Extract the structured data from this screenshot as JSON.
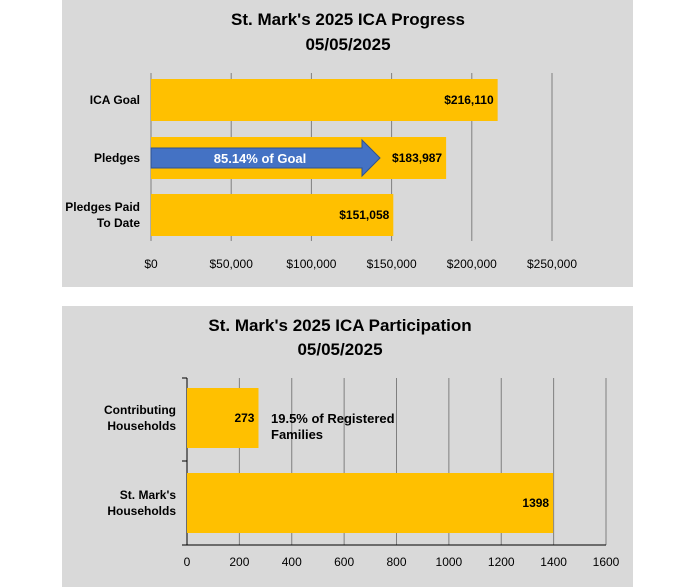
{
  "chart_data": [
    {
      "type": "bar",
      "orientation": "horizontal",
      "title": "St. Mark's 2025 ICA Progress",
      "subtitle": "05/05/2025",
      "categories": [
        "ICA Goal",
        "Pledges",
        "Pledges Paid To Date"
      ],
      "category_lines": [
        [
          "ICA Goal"
        ],
        [
          "Pledges"
        ],
        [
          "Pledges Paid",
          "To Date"
        ]
      ],
      "values": [
        216110,
        183987,
        151058
      ],
      "value_labels": [
        "$216,110",
        "$183,987",
        "$151,058"
      ],
      "xlim": [
        0,
        250000
      ],
      "ticks": [
        0,
        50000,
        100000,
        150000,
        200000,
        250000
      ],
      "tick_labels": [
        "$0",
        "$50,000",
        "$100,000",
        "$150,000",
        "$200,000",
        "$250,000"
      ],
      "grid": true,
      "annotation": "85.14%  of Goal",
      "colors": {
        "bar": "#ffc000",
        "arrow": "#4472c4",
        "background": "#d9d9d9",
        "grid": "#7f7f7f"
      }
    },
    {
      "type": "bar",
      "orientation": "horizontal",
      "title": "St. Mark's 2025 ICA Participation",
      "subtitle": "05/05/2025",
      "categories": [
        "Contributing Households",
        "St. Mark's Households"
      ],
      "category_lines": [
        [
          "Contributing",
          "Households"
        ],
        [
          "St. Mark's",
          "Households"
        ]
      ],
      "values": [
        273,
        1398
      ],
      "value_labels": [
        "273",
        "1398"
      ],
      "xlim": [
        0,
        1600
      ],
      "ticks": [
        0,
        200,
        400,
        600,
        800,
        1000,
        1200,
        1400,
        1600
      ],
      "tick_labels": [
        "0",
        "200",
        "400",
        "600",
        "800",
        "1000",
        "1200",
        "1400",
        "1600"
      ],
      "grid": true,
      "annotation_lines": [
        "19.5% of Registered",
        "Families"
      ],
      "colors": {
        "bar": "#ffc000",
        "background": "#d9d9d9",
        "grid": "#7f7f7f"
      }
    }
  ]
}
